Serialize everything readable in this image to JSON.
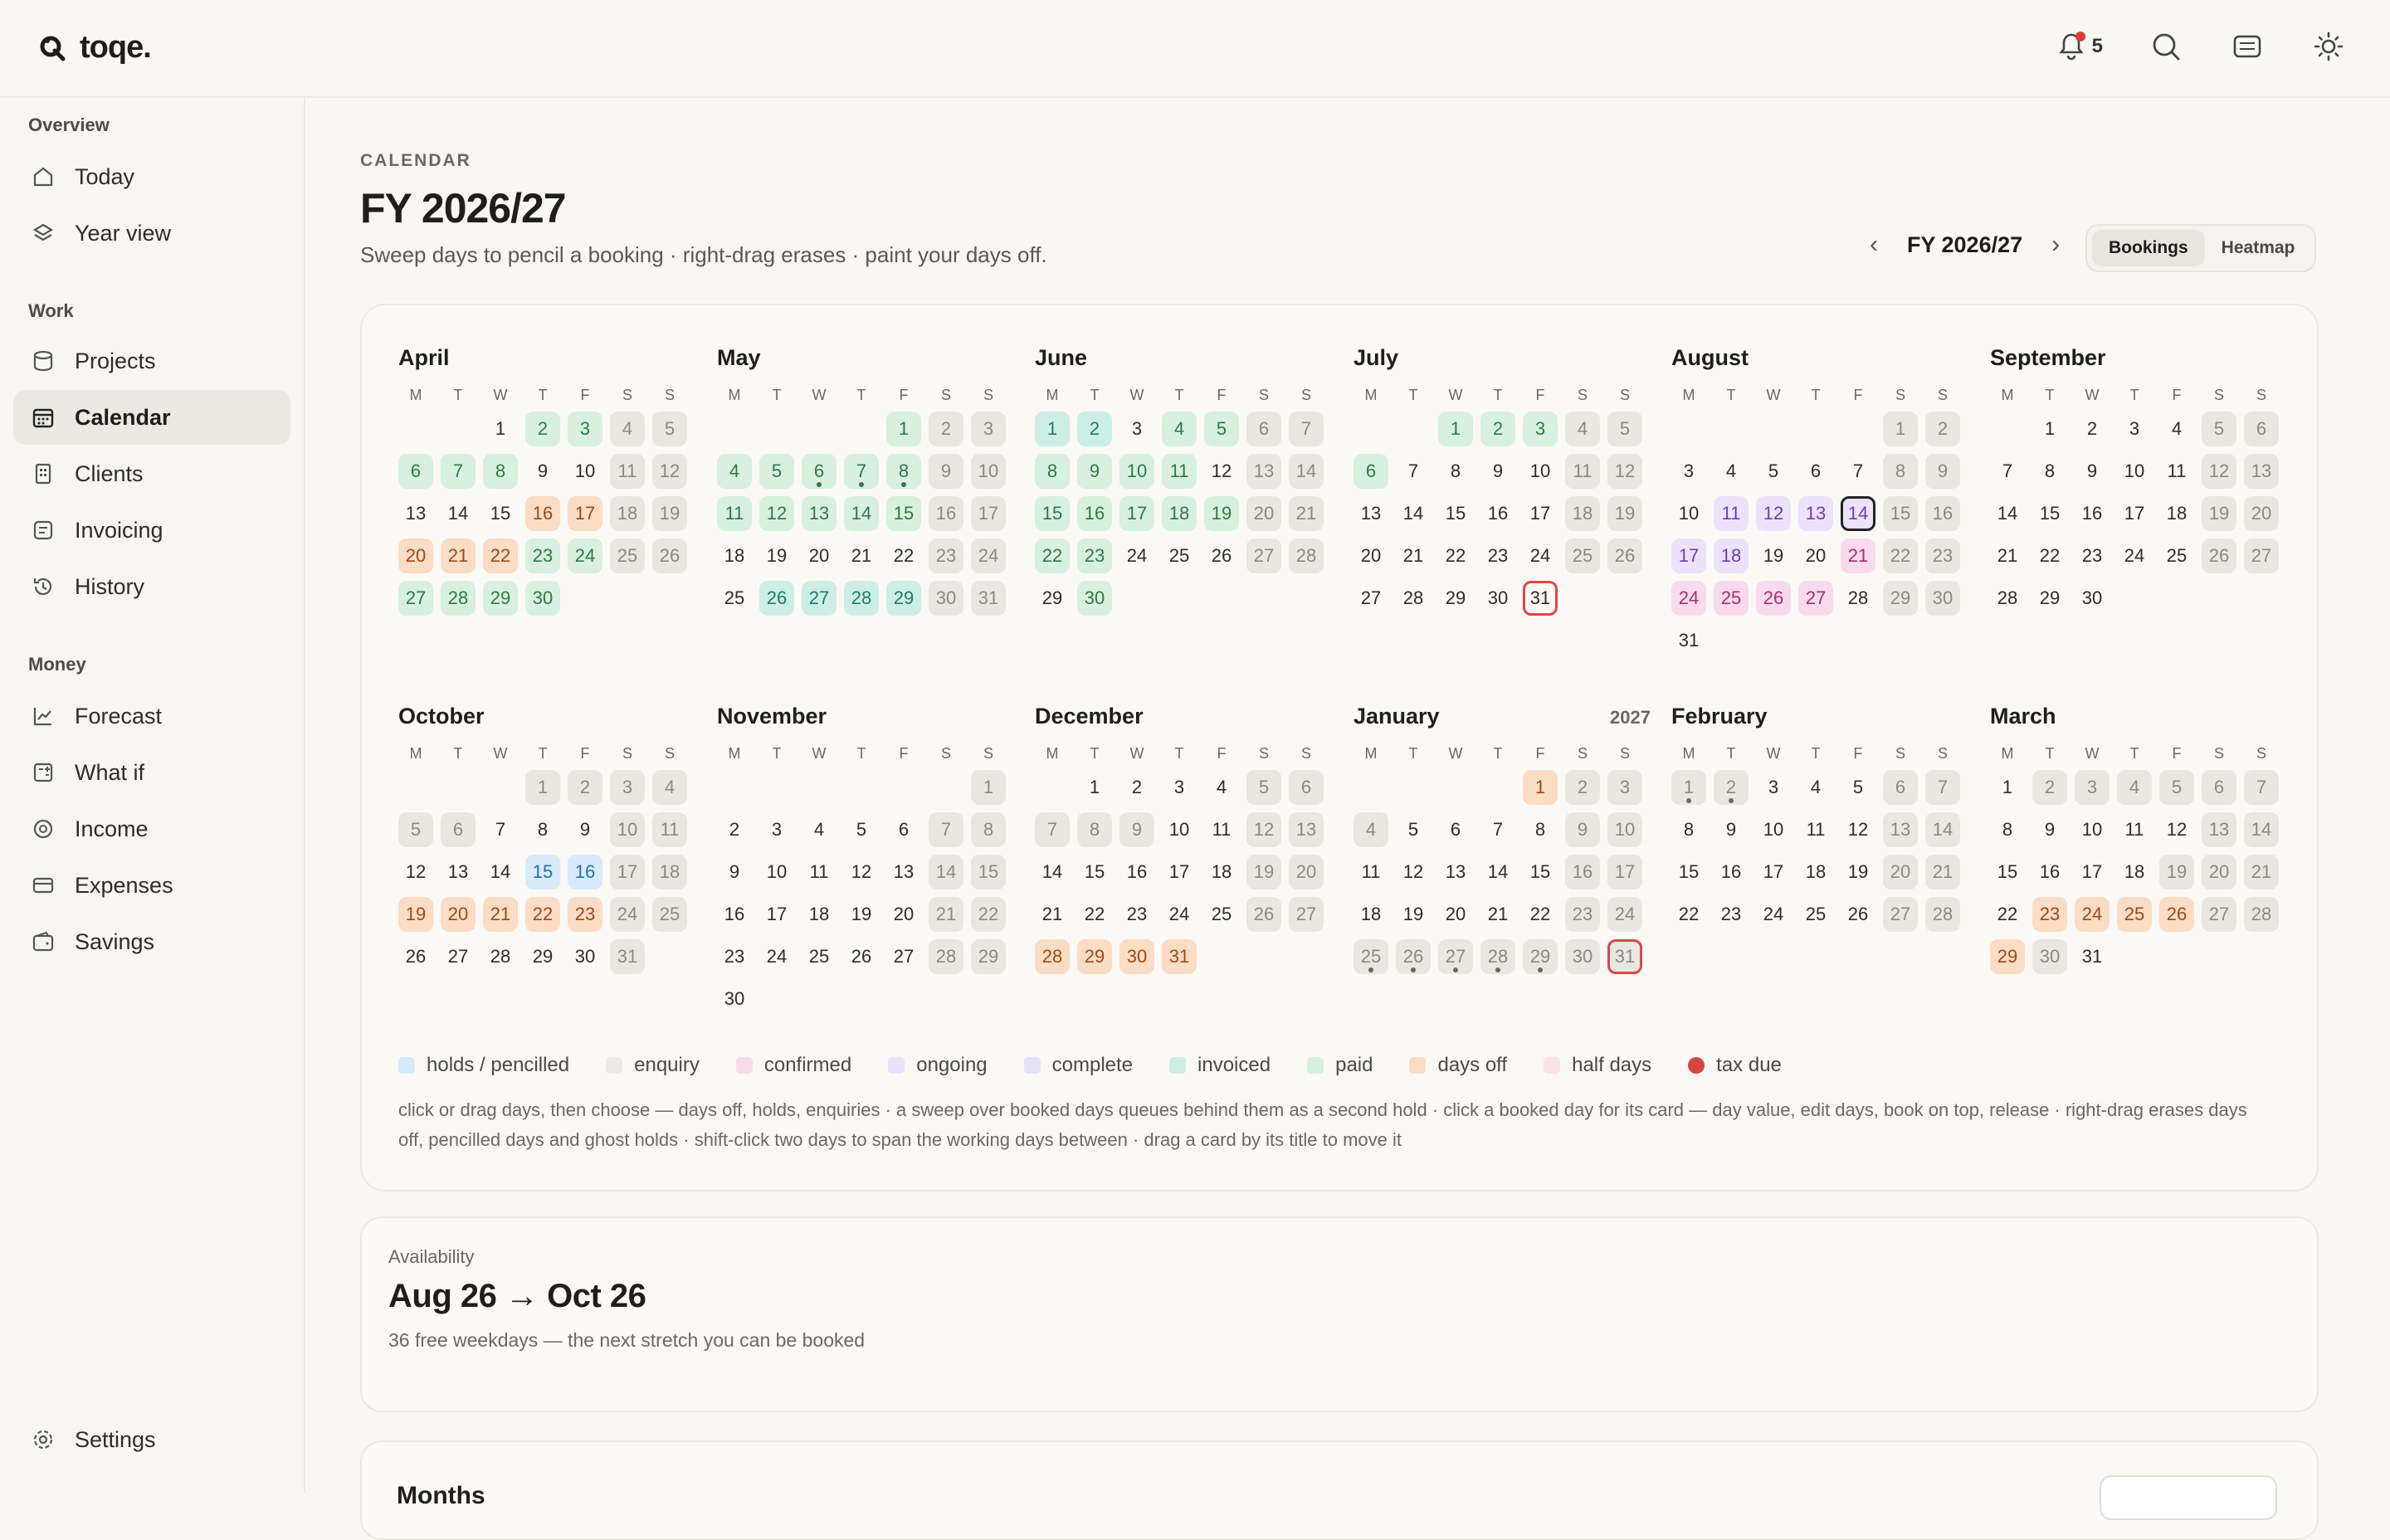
{
  "app": {
    "name": "toqe."
  },
  "topbar": {
    "notification_count": "5"
  },
  "sidebar": {
    "sections": [
      {
        "label": "Overview"
      },
      {
        "label": "Work"
      },
      {
        "label": "Money"
      }
    ],
    "items": [
      {
        "label": "Today",
        "icon": "home-icon"
      },
      {
        "label": "Year view",
        "icon": "layers-icon"
      },
      {
        "label": "Projects",
        "icon": "database-icon"
      },
      {
        "label": "Calendar",
        "icon": "calendar-icon",
        "active": true
      },
      {
        "label": "Clients",
        "icon": "building-icon"
      },
      {
        "label": "Invoicing",
        "icon": "invoice-icon"
      },
      {
        "label": "History",
        "icon": "history-icon"
      },
      {
        "label": "Forecast",
        "icon": "chart-line-icon"
      },
      {
        "label": "What if",
        "icon": "calculator-icon"
      },
      {
        "label": "Income",
        "icon": "coin-icon"
      },
      {
        "label": "Expenses",
        "icon": "card-icon"
      },
      {
        "label": "Savings",
        "icon": "wallet-icon"
      },
      {
        "label": "Settings",
        "icon": "gear-icon"
      }
    ]
  },
  "header": {
    "eyebrow": "CALENDAR",
    "title": "FY 2026/27",
    "subtitle": "Sweep days to pencil a booking · right-drag erases · paint your days off.",
    "fy_label": "FY 2026/27",
    "views": [
      "Bookings",
      "Heatmap"
    ],
    "active_view": "Bookings"
  },
  "calendar": {
    "dow": [
      "M",
      "T",
      "W",
      "T",
      "F",
      "S",
      "S"
    ],
    "months": [
      {
        "name": "April",
        "year": "",
        "offset": 2,
        "days": 30,
        "fills": {
          "2": "g1",
          "3": "g1",
          "6": "g1",
          "7": "g1",
          "8": "g1",
          "16": "o",
          "17": "o",
          "20": "o",
          "21": "o",
          "22": "o",
          "23": "g1",
          "24": "g1",
          "27": "g1",
          "28": "g1",
          "29": "g1",
          "30": "g1"
        }
      },
      {
        "name": "May",
        "year": "",
        "offset": 4,
        "days": 31,
        "fills": {
          "1": "g1",
          "4": "g1",
          "5": "g1",
          "6": "g1",
          "7": "g1",
          "8": "g1",
          "11": "g1",
          "12": "g1",
          "13": "g1",
          "14": "g1",
          "15": "g1",
          "26": "g2",
          "27": "g2",
          "28": "g2",
          "29": "g2"
        },
        "dots": [
          "6",
          "7",
          "8"
        ]
      },
      {
        "name": "June",
        "year": "",
        "offset": 0,
        "days": 30,
        "fills": {
          "1": "g2",
          "2": "g2",
          "4": "g1",
          "5": "g1",
          "8": "g1",
          "9": "g1",
          "10": "g1",
          "11": "g1",
          "15": "g1",
          "16": "g1",
          "17": "g1",
          "18": "g1",
          "19": "g1",
          "22": "g1",
          "23": "g1",
          "30": "g1"
        }
      },
      {
        "name": "July",
        "year": "",
        "offset": 2,
        "days": 31,
        "fills": {
          "1": "g1",
          "2": "g1",
          "3": "g1",
          "6": "g1"
        },
        "red": [
          "31"
        ]
      },
      {
        "name": "August",
        "year": "",
        "offset": 5,
        "days": 31,
        "fills": {
          "11": "p",
          "12": "p",
          "13": "p",
          "14": "p",
          "17": "p",
          "18": "p",
          "21": "k",
          "24": "k",
          "25": "k",
          "26": "k",
          "27": "k"
        },
        "sel": [
          "14"
        ]
      },
      {
        "name": "September",
        "year": "",
        "offset": 1,
        "days": 30,
        "fills": {}
      },
      {
        "name": "October",
        "year": "",
        "offset": 3,
        "days": 31,
        "fills": {
          "15": "b",
          "16": "b",
          "19": "o",
          "20": "o",
          "21": "o",
          "22": "o",
          "23": "o"
        },
        "greyWeek": [
          "1",
          "2",
          "5",
          "6"
        ]
      },
      {
        "name": "November",
        "year": "",
        "offset": 6,
        "days": 30,
        "fills": {}
      },
      {
        "name": "December",
        "year": "",
        "offset": 1,
        "days": 31,
        "fills": {
          "28": "o",
          "29": "o",
          "30": "o",
          "31": "o"
        },
        "greyWeek": [
          "7",
          "8",
          "9"
        ]
      },
      {
        "name": "January",
        "year": "2027",
        "offset": 4,
        "days": 31,
        "fills": {
          "1": "o"
        },
        "red": [
          "31"
        ],
        "dots": [
          "25",
          "26",
          "27",
          "28",
          "29"
        ],
        "greyWeek": [
          "4",
          "25",
          "26",
          "27",
          "28",
          "29"
        ]
      },
      {
        "name": "February",
        "year": "",
        "offset": 0,
        "days": 28,
        "fills": {},
        "dots": [
          "1",
          "2"
        ],
        "greyWeek": [
          "1",
          "2"
        ]
      },
      {
        "name": "March",
        "year": "",
        "offset": 0,
        "days": 31,
        "fills": {
          "23": "o",
          "24": "o",
          "25": "o",
          "26": "o",
          "29": "o"
        },
        "greyWeek": [
          "2",
          "3",
          "4",
          "5",
          "19",
          "30"
        ]
      }
    ]
  },
  "legend": [
    {
      "label": "holds / pencilled",
      "color": "#d8eafb"
    },
    {
      "label": "enquiry",
      "color": "#ecebe7"
    },
    {
      "label": "confirmed",
      "color": "#f9daec"
    },
    {
      "label": "ongoing",
      "color": "#ece2fb"
    },
    {
      "label": "complete",
      "color": "#e4e2fb"
    },
    {
      "label": "invoiced",
      "color": "#cdeee5"
    },
    {
      "label": "paid",
      "color": "#d8f0df"
    },
    {
      "label": "days off",
      "color": "#fbdcc4"
    },
    {
      "label": "half days",
      "color": "#fbe3e8"
    },
    {
      "label": "tax due",
      "color": "#d64545"
    }
  ],
  "help_text": "click or drag days, then choose — days off, holds, enquiries · a sweep over booked days queues behind them as a second hold · click a booked day for its card — day value, edit days, book on top, release · right-drag erases days off, pencilled days and ghost holds · shift-click two days to span the working days between · drag a card by its title to move it",
  "availability": {
    "eyebrow": "Availability",
    "title": "Aug 26 → Oct 26",
    "subtitle": "36 free weekdays — the next stretch you can be booked"
  },
  "next_section": {
    "title": "Months"
  }
}
